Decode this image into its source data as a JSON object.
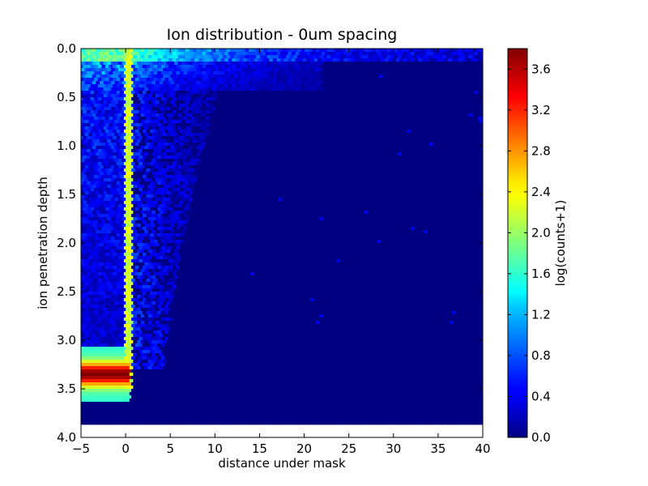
{
  "chart_data": {
    "type": "heatmap",
    "title": "Ion distribution - 0um spacing",
    "xlabel": "distance under mask",
    "ylabel": "ion penetration depth",
    "xlim": [
      -5,
      40
    ],
    "ylim": [
      4.0,
      0.0
    ],
    "x_ticks": [
      "−5",
      "0",
      "5",
      "10",
      "15",
      "20",
      "25",
      "30",
      "35",
      "40"
    ],
    "y_ticks": [
      "0.0",
      "0.5",
      "1.0",
      "1.5",
      "2.0",
      "2.5",
      "3.0",
      "3.5",
      "4.0"
    ],
    "grid": false,
    "colorbar": {
      "label": "log(counts+1)",
      "range": [
        0.0,
        3.8
      ],
      "ticks": [
        "0.0",
        "0.4",
        "0.8",
        "1.2",
        "1.6",
        "2.0",
        "2.4",
        "2.8",
        "3.2",
        "3.6"
      ],
      "colormap": "jet"
    },
    "features": {
      "background_level": 0.0,
      "data_depth_extent": 3.85,
      "vertical_streak": {
        "x": 0.3,
        "depth_range": [
          0.0,
          3.5
        ],
        "level": 2.2
      },
      "deep_peak": {
        "x_range": [
          -5,
          0.5
        ],
        "depth": 3.35,
        "level": 3.8
      },
      "left_region_level": 0.5,
      "surface_band_level": 1.5
    }
  }
}
